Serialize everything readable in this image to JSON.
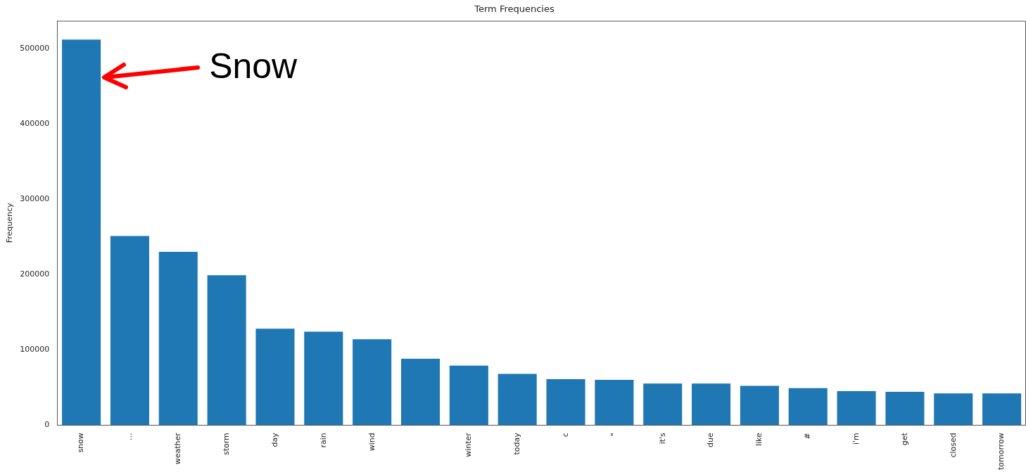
{
  "chart_data": {
    "type": "bar",
    "title": "Term Frequencies",
    "ylabel": "Frequency",
    "categories": [
      "snow",
      "…",
      "weather",
      "storm",
      "day",
      "rain",
      "wind",
      null,
      "winter",
      "today",
      "c",
      "\"",
      "it's",
      "due",
      "like",
      "#",
      "i'm",
      "get",
      "closed",
      "tomorrow"
    ],
    "values": [
      512000,
      251000,
      230000,
      199000,
      128000,
      124000,
      114000,
      88000,
      79000,
      68000,
      61000,
      60000,
      55000,
      55000,
      52000,
      49000,
      45000,
      44000,
      42000,
      42000
    ],
    "color": "#1f77b4",
    "ylim": [
      0,
      537000
    ],
    "yticks": [
      0,
      100000,
      200000,
      300000,
      400000,
      500000
    ],
    "annotations": [
      "Snow"
    ]
  }
}
